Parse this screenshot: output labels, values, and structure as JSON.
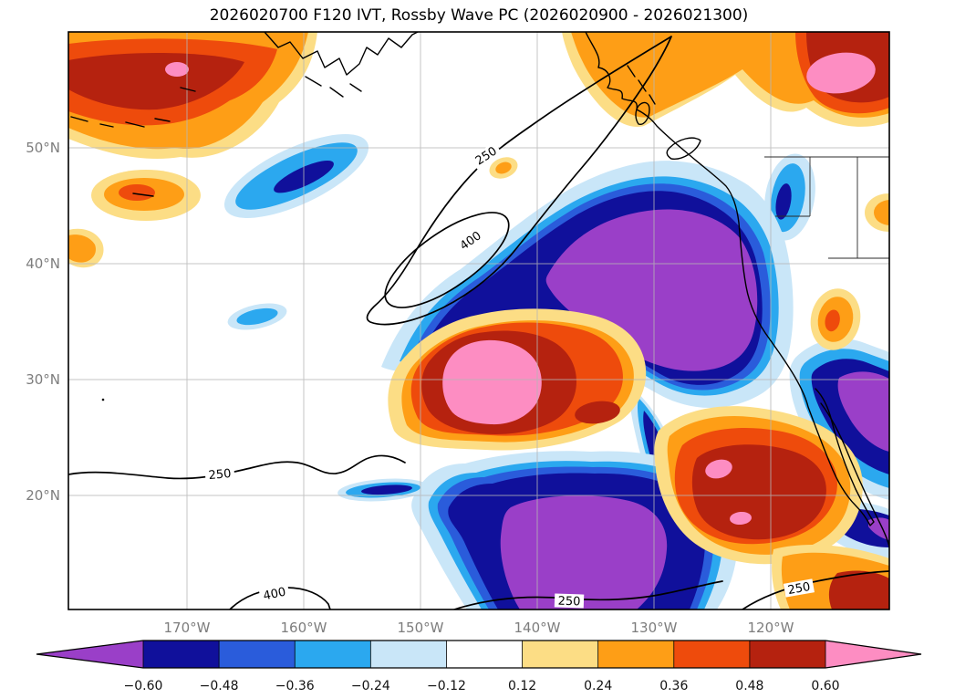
{
  "title": "2026020700 F120 IVT, Rossby Wave PC (2026020900 - 2026021300)",
  "chart_data": {
    "type": "heatmap",
    "subtype": "filled-contour map (Rossby Wave PC shading) with labeled IVT line contours over the Northeast Pacific",
    "title": "2026020700 F120 IVT, Rossby Wave PC (2026020900 - 2026021300)",
    "x_axis": {
      "tick_labels": [
        "170°W",
        "160°W",
        "150°W",
        "140°W",
        "130°W",
        "120°W"
      ]
    },
    "y_axis": {
      "tick_labels": [
        "50°N",
        "40°N",
        "30°N",
        "20°N"
      ]
    },
    "grid": true,
    "shaded_field": "Rossby Wave PC",
    "contour_field": "IVT",
    "contour_levels_shown": [
      250,
      400
    ],
    "contour_labels": [
      "250",
      "400",
      "250",
      "400",
      "250",
      "250"
    ],
    "colorbar": {
      "orientation": "horizontal",
      "extend": "both",
      "boundaries": [
        -0.6,
        -0.48,
        -0.36,
        -0.24,
        -0.12,
        0.12,
        0.24,
        0.36,
        0.48,
        0.6
      ],
      "tick_labels": [
        "−0.60",
        "−0.48",
        "−0.36",
        "−0.24",
        "−0.12",
        "0.12",
        "0.24",
        "0.36",
        "0.48",
        "0.60"
      ],
      "colors": [
        "#9a3fc8",
        "#10109b",
        "#2a5cdb",
        "#2ba8ef",
        "#c9e6f8",
        "#ffffff",
        "#fcdd85",
        "#fe9e16",
        "#ee4b0c",
        "#b5220f",
        "#fd8dc2"
      ]
    },
    "anomaly_regions": [
      {
        "sign": "negative",
        "peak_bin": "< -0.60",
        "approx_location": "large lobe ~138-122°W, 27-46°N off the US West Coast (purple core ringed by navy/blue)"
      },
      {
        "sign": "negative",
        "peak_bin": "< -0.60",
        "approx_location": "southern lobe ~140-127°W, 10-18°N reaching the bottom edge"
      },
      {
        "sign": "negative",
        "peak_bin": "-0.60 to -0.36",
        "approx_location": "small streak ~166-156°W, 45-49°N and coastal spots near 124°W, 44-48°N"
      },
      {
        "sign": "negative",
        "peak_bin": "< -0.60",
        "approx_location": "along Baja/Mexican coast at the right edge, 25-35°N"
      },
      {
        "sign": "positive",
        "peak_bin": "> 0.60",
        "approx_location": "pink core ~146-139°W, 27-33°N inside >0.48 dark-red ring"
      },
      {
        "sign": "positive",
        "peak_bin": "> 0.60",
        "approx_location": "northeast corner ~118-112°W, 55-58°N (pink in dark red)"
      },
      {
        "sign": "positive",
        "peak_bin": "> 0.60",
        "approx_location": "northwest corner ~180-168°W, 52-58°N (dark red with small pink speck)"
      },
      {
        "sign": "positive",
        "peak_bin": "0.48 to 0.60",
        "approx_location": "subtropical blob ~127-117°W, 16-24°N"
      }
    ]
  }
}
